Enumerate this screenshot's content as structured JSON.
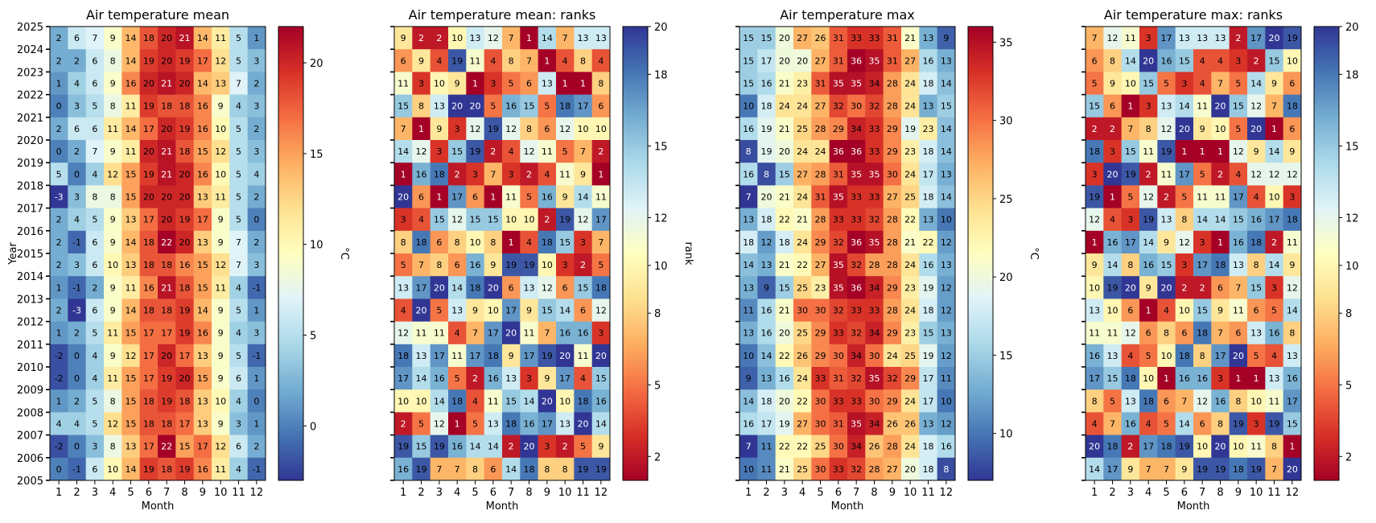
{
  "colors": {
    "rdylbu_stops": [
      "#313695",
      "#4575b4",
      "#74add1",
      "#abd9e9",
      "#e0f3f8",
      "#ffffbf",
      "#fee090",
      "#fdae61",
      "#f46d43",
      "#d73027",
      "#a50026"
    ]
  },
  "chart_data": [
    {
      "type": "heatmap",
      "title": "Air temperature mean",
      "xlabel": "Month",
      "ylabel": "Year",
      "colorbar_label": "°C",
      "colormap": "RdYlBu_r",
      "vmin": -3,
      "vmax": 22,
      "colorbar_ticks": [
        0,
        5,
        10,
        15,
        20
      ],
      "x": [
        "1",
        "2",
        "3",
        "4",
        "5",
        "6",
        "7",
        "8",
        "9",
        "10",
        "11",
        "12"
      ],
      "y_ticks": [
        "2005",
        "2006",
        "2007",
        "2008",
        "2009",
        "2010",
        "2011",
        "2012",
        "2013",
        "2014",
        "2015",
        "2016",
        "2017",
        "2018",
        "2019",
        "2020",
        "2021",
        "2022",
        "2023",
        "2024",
        "2025"
      ],
      "rows": [
        [
          2,
          6,
          7,
          9,
          14,
          18,
          20,
          21,
          14,
          11,
          5,
          1
        ],
        [
          2,
          2,
          6,
          8,
          14,
          19,
          20,
          19,
          17,
          12,
          5,
          3
        ],
        [
          1,
          4,
          6,
          9,
          16,
          20,
          21,
          20,
          14,
          13,
          7,
          2
        ],
        [
          0,
          3,
          5,
          8,
          11,
          19,
          18,
          18,
          16,
          9,
          4,
          3
        ],
        [
          2,
          6,
          6,
          11,
          14,
          17,
          20,
          19,
          16,
          10,
          5,
          2
        ],
        [
          0,
          2,
          7,
          9,
          11,
          20,
          21,
          18,
          15,
          12,
          5,
          3
        ],
        [
          5,
          0,
          4,
          12,
          15,
          19,
          21,
          20,
          16,
          10,
          5,
          4
        ],
        [
          -3,
          3,
          8,
          8,
          15,
          20,
          20,
          20,
          13,
          11,
          5,
          2
        ],
        [
          2,
          4,
          5,
          9,
          13,
          17,
          20,
          19,
          17,
          9,
          5,
          0
        ],
        [
          2,
          -1,
          6,
          9,
          14,
          18,
          22,
          20,
          13,
          9,
          7,
          2
        ],
        [
          2,
          3,
          6,
          10,
          13,
          18,
          18,
          16,
          15,
          12,
          7,
          3
        ],
        [
          1,
          -1,
          2,
          9,
          11,
          16,
          21,
          18,
          15,
          11,
          4,
          -1
        ],
        [
          2,
          -3,
          6,
          9,
          14,
          18,
          18,
          19,
          14,
          9,
          5,
          1
        ],
        [
          1,
          2,
          5,
          11,
          15,
          17,
          17,
          19,
          16,
          9,
          4,
          3
        ],
        [
          -2,
          0,
          4,
          9,
          12,
          17,
          20,
          17,
          13,
          9,
          5,
          -1
        ],
        [
          -2,
          0,
          4,
          11,
          15,
          17,
          19,
          20,
          15,
          9,
          6,
          1
        ],
        [
          1,
          2,
          5,
          8,
          15,
          18,
          19,
          18,
          13,
          10,
          4,
          0
        ],
        [
          4,
          4,
          5,
          12,
          15,
          18,
          18,
          17,
          13,
          9,
          3,
          1
        ],
        [
          -2,
          0,
          3,
          8,
          13,
          17,
          22,
          15,
          17,
          12,
          6,
          2
        ],
        [
          0,
          -1,
          6,
          10,
          14,
          19,
          18,
          19,
          16,
          11,
          4,
          -1
        ]
      ]
    },
    {
      "type": "heatmap",
      "title": "Air temperature mean: ranks",
      "xlabel": "Month",
      "ylabel": "",
      "colorbar_label": "rank",
      "colormap": "RdYlBu",
      "vmin": 1,
      "vmax": 20,
      "colorbar_ticks": [
        2,
        5,
        8,
        10,
        12,
        15,
        18,
        20
      ],
      "x": [
        "1",
        "2",
        "3",
        "4",
        "5",
        "6",
        "7",
        "8",
        "9",
        "10",
        "11",
        "12"
      ],
      "y_ticks": [],
      "rows": [
        [
          9,
          2,
          2,
          10,
          13,
          12,
          7,
          1,
          14,
          7,
          13,
          13
        ],
        [
          6,
          9,
          4,
          19,
          11,
          4,
          8,
          7,
          1,
          4,
          8,
          4
        ],
        [
          11,
          3,
          10,
          9,
          1,
          3,
          5,
          6,
          13,
          1,
          1,
          8
        ],
        [
          15,
          8,
          13,
          20,
          20,
          5,
          16,
          15,
          5,
          18,
          17,
          6
        ],
        [
          7,
          1,
          9,
          3,
          12,
          19,
          12,
          8,
          6,
          12,
          10,
          10
        ],
        [
          14,
          12,
          3,
          15,
          19,
          2,
          4,
          12,
          11,
          5,
          7,
          2
        ],
        [
          1,
          16,
          18,
          2,
          3,
          7,
          3,
          2,
          4,
          11,
          9,
          1
        ],
        [
          20,
          6,
          1,
          17,
          6,
          1,
          11,
          5,
          16,
          9,
          14,
          11
        ],
        [
          3,
          4,
          15,
          12,
          15,
          15,
          10,
          10,
          2,
          19,
          12,
          17
        ],
        [
          8,
          18,
          6,
          8,
          10,
          8,
          1,
          4,
          18,
          15,
          3,
          7
        ],
        [
          5,
          7,
          8,
          6,
          16,
          9,
          19,
          19,
          10,
          3,
          2,
          5
        ],
        [
          13,
          17,
          20,
          14,
          18,
          20,
          6,
          13,
          12,
          6,
          15,
          18
        ],
        [
          4,
          20,
          5,
          13,
          9,
          10,
          17,
          9,
          15,
          14,
          6,
          12
        ],
        [
          12,
          11,
          11,
          4,
          7,
          17,
          20,
          11,
          7,
          16,
          16,
          3
        ],
        [
          18,
          13,
          17,
          11,
          17,
          18,
          9,
          17,
          19,
          20,
          11,
          20
        ],
        [
          17,
          14,
          16,
          5,
          2,
          16,
          13,
          3,
          9,
          17,
          4,
          15
        ],
        [
          10,
          10,
          14,
          18,
          4,
          11,
          15,
          14,
          20,
          10,
          18,
          16
        ],
        [
          2,
          5,
          12,
          1,
          5,
          13,
          18,
          16,
          17,
          13,
          20,
          14
        ],
        [
          19,
          15,
          19,
          16,
          14,
          14,
          2,
          20,
          3,
          2,
          5,
          9
        ],
        [
          16,
          19,
          7,
          7,
          8,
          6,
          14,
          18,
          8,
          8,
          19,
          19
        ]
      ]
    },
    {
      "type": "heatmap",
      "title": "Air temperature max",
      "xlabel": "Month",
      "ylabel": "",
      "colorbar_label": "°C",
      "colormap": "RdYlBu_r",
      "vmin": 7,
      "vmax": 36,
      "colorbar_ticks": [
        10,
        15,
        20,
        25,
        30,
        35
      ],
      "x": [
        "1",
        "2",
        "3",
        "4",
        "5",
        "6",
        "7",
        "8",
        "9",
        "10",
        "11",
        "12"
      ],
      "y_ticks": [],
      "rows": [
        [
          15,
          15,
          20,
          27,
          26,
          31,
          33,
          33,
          31,
          21,
          13,
          9
        ],
        [
          15,
          17,
          20,
          20,
          27,
          31,
          36,
          35,
          31,
          27,
          16,
          13
        ],
        [
          15,
          16,
          21,
          23,
          31,
          35,
          35,
          34,
          28,
          24,
          18,
          14
        ],
        [
          10,
          18,
          24,
          24,
          27,
          32,
          30,
          32,
          28,
          24,
          13,
          15
        ],
        [
          16,
          19,
          21,
          25,
          28,
          29,
          34,
          33,
          29,
          19,
          23,
          14
        ],
        [
          8,
          19,
          20,
          24,
          24,
          36,
          36,
          33,
          29,
          23,
          18,
          14
        ],
        [
          16,
          8,
          15,
          27,
          28,
          31,
          35,
          35,
          30,
          24,
          17,
          13
        ],
        [
          7,
          20,
          21,
          24,
          31,
          35,
          33,
          33,
          27,
          25,
          18,
          14
        ],
        [
          13,
          18,
          22,
          21,
          28,
          33,
          33,
          32,
          28,
          22,
          13,
          10
        ],
        [
          18,
          12,
          18,
          24,
          29,
          32,
          36,
          35,
          28,
          21,
          22,
          12
        ],
        [
          14,
          13,
          21,
          22,
          27,
          35,
          32,
          28,
          28,
          24,
          16,
          13
        ],
        [
          13,
          9,
          15,
          25,
          23,
          35,
          36,
          34,
          29,
          23,
          19,
          12
        ],
        [
          11,
          16,
          21,
          30,
          30,
          32,
          33,
          33,
          28,
          24,
          18,
          12
        ],
        [
          13,
          16,
          20,
          25,
          29,
          33,
          32,
          34,
          29,
          23,
          15,
          13
        ],
        [
          10,
          14,
          22,
          26,
          29,
          30,
          34,
          30,
          24,
          25,
          19,
          12
        ],
        [
          9,
          13,
          16,
          24,
          33,
          31,
          32,
          35,
          32,
          29,
          17,
          11
        ],
        [
          14,
          18,
          20,
          22,
          30,
          33,
          33,
          30,
          29,
          24,
          17,
          10
        ],
        [
          16,
          17,
          19,
          27,
          30,
          31,
          35,
          34,
          26,
          26,
          13,
          12
        ],
        [
          7,
          11,
          22,
          22,
          25,
          30,
          34,
          26,
          28,
          24,
          18,
          16
        ],
        [
          10,
          11,
          21,
          25,
          30,
          33,
          32,
          28,
          27,
          20,
          18,
          8
        ]
      ]
    },
    {
      "type": "heatmap",
      "title": "Air temperature max: ranks",
      "xlabel": "Month",
      "ylabel": "",
      "colorbar_label": "rank",
      "colormap": "RdYlBu",
      "vmin": 1,
      "vmax": 20,
      "colorbar_ticks": [
        2,
        5,
        8,
        10,
        12,
        15,
        18,
        20
      ],
      "x": [
        "1",
        "2",
        "3",
        "4",
        "5",
        "6",
        "7",
        "8",
        "9",
        "10",
        "11",
        "12"
      ],
      "y_ticks": [],
      "rows": [
        [
          7,
          12,
          11,
          3,
          17,
          13,
          13,
          13,
          2,
          17,
          20,
          19
        ],
        [
          6,
          8,
          14,
          20,
          16,
          15,
          4,
          4,
          3,
          2,
          15,
          10
        ],
        [
          5,
          9,
          10,
          15,
          5,
          3,
          4,
          7,
          5,
          14,
          9,
          6
        ],
        [
          15,
          6,
          1,
          3,
          13,
          14,
          11,
          20,
          15,
          12,
          7,
          18
        ],
        [
          2,
          2,
          7,
          8,
          12,
          20,
          9,
          10,
          5,
          20,
          1,
          6
        ],
        [
          18,
          3,
          15,
          11,
          19,
          1,
          1,
          1,
          12,
          9,
          14,
          9
        ],
        [
          3,
          20,
          19,
          2,
          11,
          17,
          5,
          2,
          4,
          12,
          12,
          12
        ],
        [
          19,
          1,
          5,
          12,
          2,
          5,
          11,
          11,
          17,
          4,
          10,
          3
        ],
        [
          12,
          4,
          3,
          19,
          13,
          8,
          14,
          14,
          15,
          16,
          17,
          18
        ],
        [
          1,
          16,
          17,
          14,
          9,
          12,
          3,
          1,
          16,
          18,
          2,
          11
        ],
        [
          9,
          14,
          8,
          16,
          15,
          3,
          17,
          18,
          13,
          8,
          14,
          9
        ],
        [
          10,
          19,
          20,
          9,
          20,
          2,
          2,
          6,
          7,
          15,
          3,
          12
        ],
        [
          13,
          10,
          6,
          1,
          4,
          10,
          15,
          9,
          11,
          6,
          5,
          14
        ],
        [
          11,
          11,
          12,
          6,
          8,
          6,
          18,
          7,
          6,
          13,
          16,
          8
        ],
        [
          16,
          13,
          4,
          5,
          10,
          18,
          8,
          17,
          20,
          5,
          4,
          13
        ],
        [
          17,
          15,
          18,
          10,
          1,
          16,
          16,
          3,
          1,
          1,
          13,
          16
        ],
        [
          8,
          5,
          13,
          18,
          6,
          7,
          12,
          16,
          8,
          10,
          11,
          17
        ],
        [
          4,
          7,
          16,
          4,
          5,
          14,
          6,
          8,
          19,
          3,
          19,
          15
        ],
        [
          20,
          18,
          2,
          17,
          18,
          19,
          10,
          20,
          10,
          11,
          8,
          1
        ],
        [
          14,
          17,
          9,
          7,
          7,
          9,
          19,
          19,
          18,
          19,
          7,
          20
        ]
      ]
    }
  ]
}
